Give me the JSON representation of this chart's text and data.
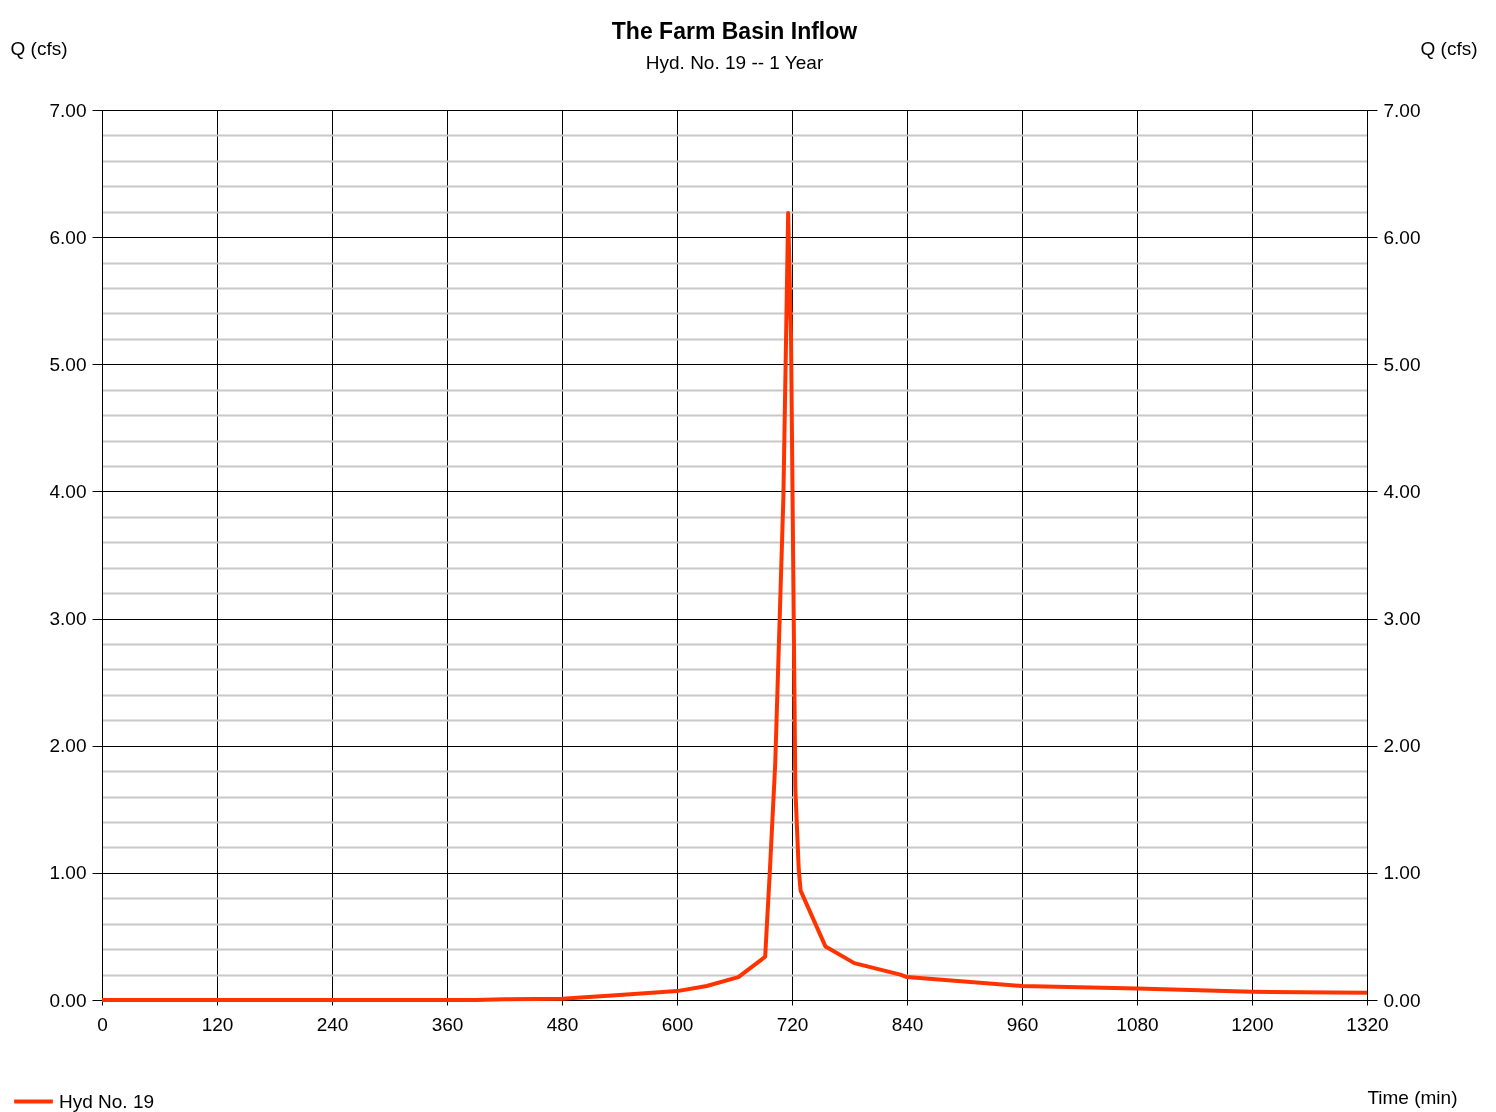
{
  "chart_data": {
    "type": "line",
    "title": "The Farm Basin Inflow",
    "subtitle": "Hyd. No. 19 -- 1 Year",
    "xlabel": "Time (min)",
    "ylabel": "Q (cfs)",
    "y2label": "Q (cfs)",
    "x": [
      0,
      120,
      240,
      360,
      390,
      420,
      480,
      540,
      600,
      631,
      664,
      692,
      697,
      702.5,
      711,
      716,
      719,
      723.5,
      727,
      729,
      755,
      785,
      833,
      840,
      960,
      1080,
      1200,
      1320
    ],
    "series": [
      {
        "name": "Hyd No. 19",
        "color": "#ff3300",
        "values": [
          0,
          0,
          0,
          0,
          0,
          0.005,
          0.01,
          0.04,
          0.07,
          0.11,
          0.18,
          0.34,
          1.03,
          1.86,
          3.95,
          6.19,
          5.2,
          1.66,
          1.03,
          0.86,
          0.42,
          0.29,
          0.2,
          0.18,
          0.11,
          0.09,
          0.065,
          0.057
        ]
      }
    ],
    "xlim": [
      0,
      1320
    ],
    "xticks": [
      0,
      120,
      240,
      360,
      480,
      600,
      720,
      840,
      960,
      1080,
      1200,
      1320
    ],
    "ylim": [
      0,
      7
    ],
    "yticks": [
      {
        "value": 0,
        "label": "0.00"
      },
      {
        "value": 0.2,
        "label": null
      },
      {
        "value": 0.4,
        "label": null
      },
      {
        "value": 0.6,
        "label": null
      },
      {
        "value": 0.8,
        "label": null
      },
      {
        "value": 1,
        "label": "1.00"
      },
      {
        "value": 1.2,
        "label": null
      },
      {
        "value": 1.4,
        "label": null
      },
      {
        "value": 1.6,
        "label": null
      },
      {
        "value": 1.8,
        "label": null
      },
      {
        "value": 2,
        "label": "2.00"
      },
      {
        "value": 2.2,
        "label": null
      },
      {
        "value": 2.4,
        "label": null
      },
      {
        "value": 2.6,
        "label": null
      },
      {
        "value": 2.8,
        "label": null
      },
      {
        "value": 3,
        "label": "3.00"
      },
      {
        "value": 3.2,
        "label": null
      },
      {
        "value": 3.4,
        "label": null
      },
      {
        "value": 3.6,
        "label": null
      },
      {
        "value": 3.8,
        "label": null
      },
      {
        "value": 4,
        "label": "4.00"
      },
      {
        "value": 4.2,
        "label": null
      },
      {
        "value": 4.4,
        "label": null
      },
      {
        "value": 4.6,
        "label": null
      },
      {
        "value": 4.8,
        "label": null
      },
      {
        "value": 5,
        "label": "5.00"
      },
      {
        "value": 5.2,
        "label": null
      },
      {
        "value": 5.4,
        "label": null
      },
      {
        "value": 5.6,
        "label": null
      },
      {
        "value": 5.8,
        "label": null
      },
      {
        "value": 6,
        "label": "6.00"
      },
      {
        "value": 6.2,
        "label": null
      },
      {
        "value": 6.4,
        "label": null
      },
      {
        "value": 6.6,
        "label": null
      },
      {
        "value": 6.8,
        "label": null
      },
      {
        "value": 7,
        "label": "7.00"
      }
    ],
    "y2lim": [
      0,
      7
    ],
    "y2ticks": [
      {
        "value": 0,
        "label": "0.00"
      },
      {
        "value": 1,
        "label": "1.00"
      },
      {
        "value": 2,
        "label": "2.00"
      },
      {
        "value": 3,
        "label": "3.00"
      },
      {
        "value": 4,
        "label": "4.00"
      },
      {
        "value": 5,
        "label": "5.00"
      },
      {
        "value": 6,
        "label": "6.00"
      },
      {
        "value": 7,
        "label": "7.00"
      }
    ],
    "grid": true,
    "legend": "bottom left",
    "line_style": "solid",
    "marker": "none"
  }
}
